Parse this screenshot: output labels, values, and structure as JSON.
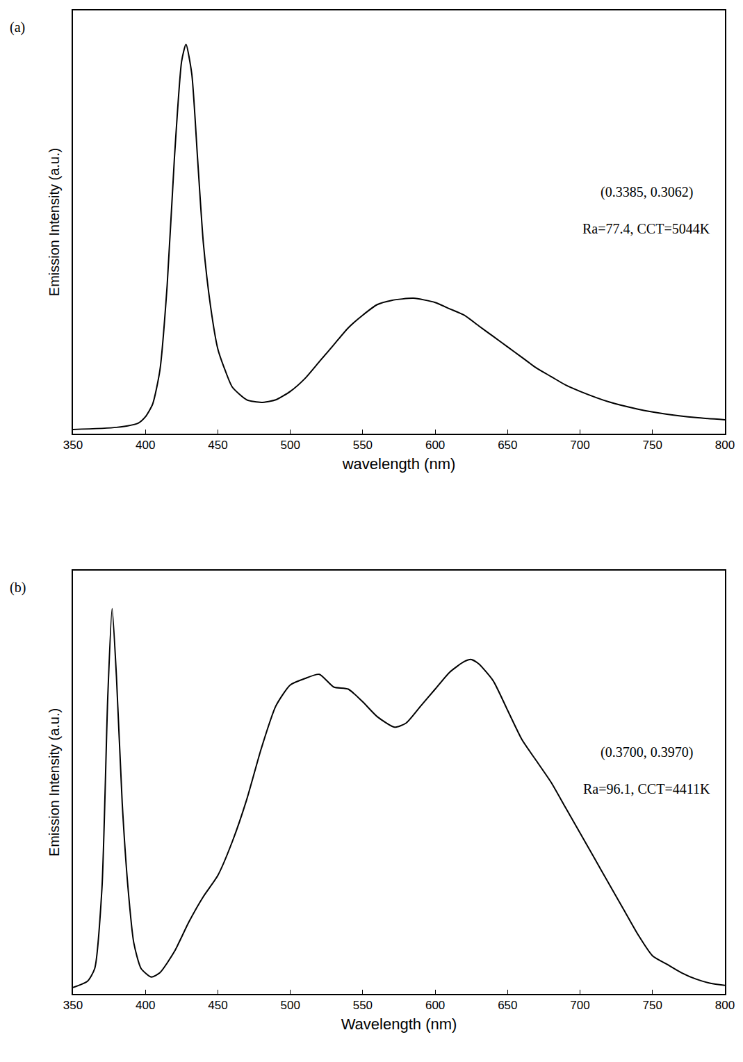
{
  "chart_data": [
    {
      "type": "line",
      "panel": "(a)",
      "x_label": "wavelength (nm)",
      "y_label": "Emission Intensity (a.u.)",
      "annotations": [
        "(0.3385, 0.3062)",
        "Ra=77.4, CCT=5044K"
      ],
      "x": [
        350,
        380,
        395,
        400,
        405,
        410,
        415,
        420,
        425,
        428,
        432,
        436,
        440,
        445,
        450,
        455,
        460,
        470,
        480,
        490,
        500,
        510,
        520,
        530,
        540,
        550,
        560,
        570,
        585,
        600,
        610,
        620,
        630,
        640,
        650,
        660,
        670,
        680,
        690,
        700,
        720,
        740,
        760,
        780,
        800
      ],
      "values": [
        0.01,
        0.015,
        0.025,
        0.04,
        0.07,
        0.15,
        0.35,
        0.65,
        0.88,
        0.92,
        0.85,
        0.65,
        0.45,
        0.3,
        0.2,
        0.15,
        0.11,
        0.08,
        0.074,
        0.08,
        0.1,
        0.13,
        0.17,
        0.21,
        0.25,
        0.28,
        0.305,
        0.315,
        0.32,
        0.31,
        0.295,
        0.28,
        0.255,
        0.23,
        0.205,
        0.18,
        0.155,
        0.135,
        0.115,
        0.1,
        0.075,
        0.058,
        0.046,
        0.038,
        0.033
      ],
      "color": "#000000",
      "xlim": [
        350,
        800
      ],
      "xticks": [
        350,
        400,
        450,
        500,
        550,
        600,
        650,
        700,
        750,
        800
      ],
      "ylim": [
        0,
        1
      ],
      "grid": false,
      "tick_labels": "x"
    },
    {
      "type": "line",
      "panel": "(b)",
      "x_label": "Wavelength (nm)",
      "y_label": "Emission Intensity (a.u.)",
      "annotations": [
        "(0.3700, 0.3970)",
        "Ra=96.1, CCT=4411K"
      ],
      "x": [
        350,
        360,
        365,
        370,
        374,
        377,
        380,
        384,
        388,
        392,
        397,
        404,
        410,
        420,
        430,
        440,
        450,
        460,
        470,
        480,
        490,
        500,
        510,
        520,
        530,
        540,
        550,
        560,
        572,
        580,
        590,
        600,
        610,
        620,
        625,
        630,
        640,
        650,
        660,
        670,
        680,
        690,
        700,
        710,
        720,
        730,
        740,
        750,
        760,
        770,
        780,
        790,
        800
      ],
      "values": [
        0.015,
        0.03,
        0.06,
        0.25,
        0.7,
        0.91,
        0.75,
        0.45,
        0.25,
        0.12,
        0.06,
        0.04,
        0.05,
        0.1,
        0.17,
        0.23,
        0.28,
        0.36,
        0.46,
        0.58,
        0.68,
        0.73,
        0.745,
        0.755,
        0.725,
        0.72,
        0.69,
        0.655,
        0.63,
        0.64,
        0.68,
        0.72,
        0.76,
        0.785,
        0.79,
        0.78,
        0.74,
        0.67,
        0.6,
        0.55,
        0.5,
        0.44,
        0.38,
        0.32,
        0.26,
        0.2,
        0.14,
        0.09,
        0.07,
        0.05,
        0.035,
        0.025,
        0.02
      ],
      "color": "#000000",
      "xlim": [
        350,
        800
      ],
      "xticks": [
        350,
        400,
        450,
        500,
        550,
        600,
        650,
        700,
        750,
        800
      ],
      "ylim": [
        0,
        1
      ],
      "grid": false,
      "tick_labels": "x"
    }
  ]
}
